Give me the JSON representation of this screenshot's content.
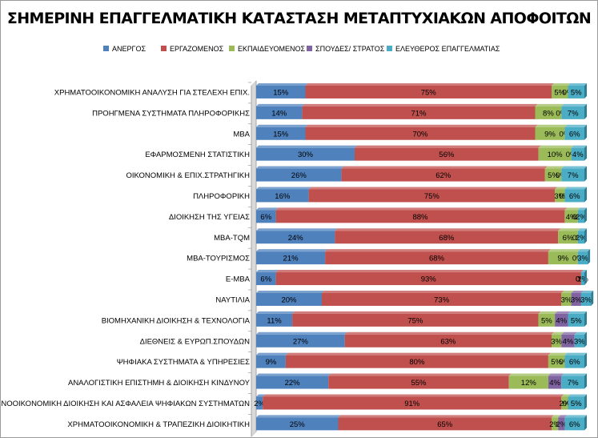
{
  "chart_data": {
    "type": "bar",
    "orientation": "horizontal",
    "stacked": "percent",
    "title": "ΣΗΜΕΡΙΝΗ ΕΠΑΓΓΕΛΜΑΤΙΚΗ ΚΑΤΑΣΤΑΣΗ ΜΕΤΑΠΤΥΧΙΑΚΩΝ ΑΠΟΦΟΙΤΩΝ",
    "legend_position": "top",
    "xlim": [
      0,
      100
    ],
    "categories": [
      "ΧΡΗΜΑΤΟΟΙΚΟΝΟΜΙΚΗ ΑΝΑΛΥΣΗ ΓΙΑ ΣΤΕΛΕΧΗ ΕΠΙΧ.",
      "ΠΡΟΗΓΜΕΝΑ ΣΥΣΤΗΜΑΤΑ ΠΛΗΡΟΦΟΡΙΚΗΣ",
      "MBA",
      "ΕΦΑΡΜΟΣΜΕΝΗ ΣΤΑΤΙΣΤΙΚΗ",
      "ΟΙΚΟΝΟΜΙΚΗ & ΕΠΙΧ.ΣΤΡΑΤΗΓΙΚΗ",
      "ΠΛΗΡΟΦΟΡΙΚΗ",
      "ΔΙΟΙΚΗΣΗ ΤΗΣ ΥΓΕΙΑΣ",
      "MBA-TQM",
      "MBA-ΤΟΥΡΙΣΜΟΣ",
      "E-MBA",
      "ΝΑΥΤΙΛΙΑ",
      "ΒΙΟΜΗΧΑΝΙΚΗ ΔΙΟΙΚΗΣΗ & ΤΕΧΝΟΛΟΓΙΑ",
      "ΔΙΕΘΝΕΙΣ & ΕΥΡΩΠ.ΣΠΟΥΔΩΝ",
      "ΨΗΦΙΑΚΑ ΣΥΣΤΗΜΑΤΑ & ΥΠΗΡΕΣΙΕΣ",
      "ΑΝΑΛΟΓΙΣΤΙΚΗ ΕΠΙΣΤΗΜΗ & ΔΙΟΙΚΗΣΗ ΚΙΝΔΥΝΟΥ",
      "ΤΕΧΝΟΟΙΚΟΝΟΜΙΚΗ ΔΙΟΙΚΗΣΗ ΚΑΙ ΑΣΦΑΛΕΙΑ ΨΗΦΙΑΚΩΝ ΣΥΣΤΗΜΑΤΩΝ",
      "ΧΡΗΜΑΤΟΟΙΚΟΝΟΜΙΚΗ & ΤΡΑΠΕΖΙΚΗ ΔΙΟΙΚΗΤΙΚΗ"
    ],
    "series": [
      {
        "name": "ΑΝΕΡΓΟΣ",
        "color": "#4f81bd",
        "values": [
          15,
          14,
          15,
          30,
          26,
          16,
          6,
          24,
          21,
          6,
          20,
          11,
          27,
          9,
          22,
          2,
          25
        ]
      },
      {
        "name": "ΕΡΓΑΖΟΜΕΝΟΣ",
        "color": "#c0504d",
        "values": [
          75,
          71,
          70,
          56,
          62,
          75,
          88,
          68,
          68,
          93,
          73,
          75,
          63,
          80,
          55,
          91,
          65
        ]
      },
      {
        "name": "ΕΚΠΑΙΔΕΥΟΜΕΝΟΣ",
        "color": "#9bbb59",
        "values": [
          5,
          8,
          9,
          10,
          5,
          3,
          4,
          6,
          9,
          0,
          3,
          5,
          3,
          5,
          12,
          2,
          2
        ]
      },
      {
        "name": "ΣΠΟΥΔΕΣ/ ΣΤΡΑΤΟΣ",
        "color": "#8064a2",
        "values": [
          0,
          0,
          0,
          0,
          0,
          0,
          0,
          0,
          0,
          0,
          3,
          4,
          4,
          0,
          4,
          0,
          2
        ]
      },
      {
        "name": "ΕΛΕΥΘΕΡΟΣ ΕΠΑΓΓΕΛΜΑΤΙΑΣ",
        "color": "#4bacc6",
        "values": [
          5,
          7,
          6,
          4,
          7,
          6,
          2,
          2,
          3,
          1,
          3,
          5,
          3,
          6,
          7,
          5,
          6
        ]
      }
    ]
  }
}
